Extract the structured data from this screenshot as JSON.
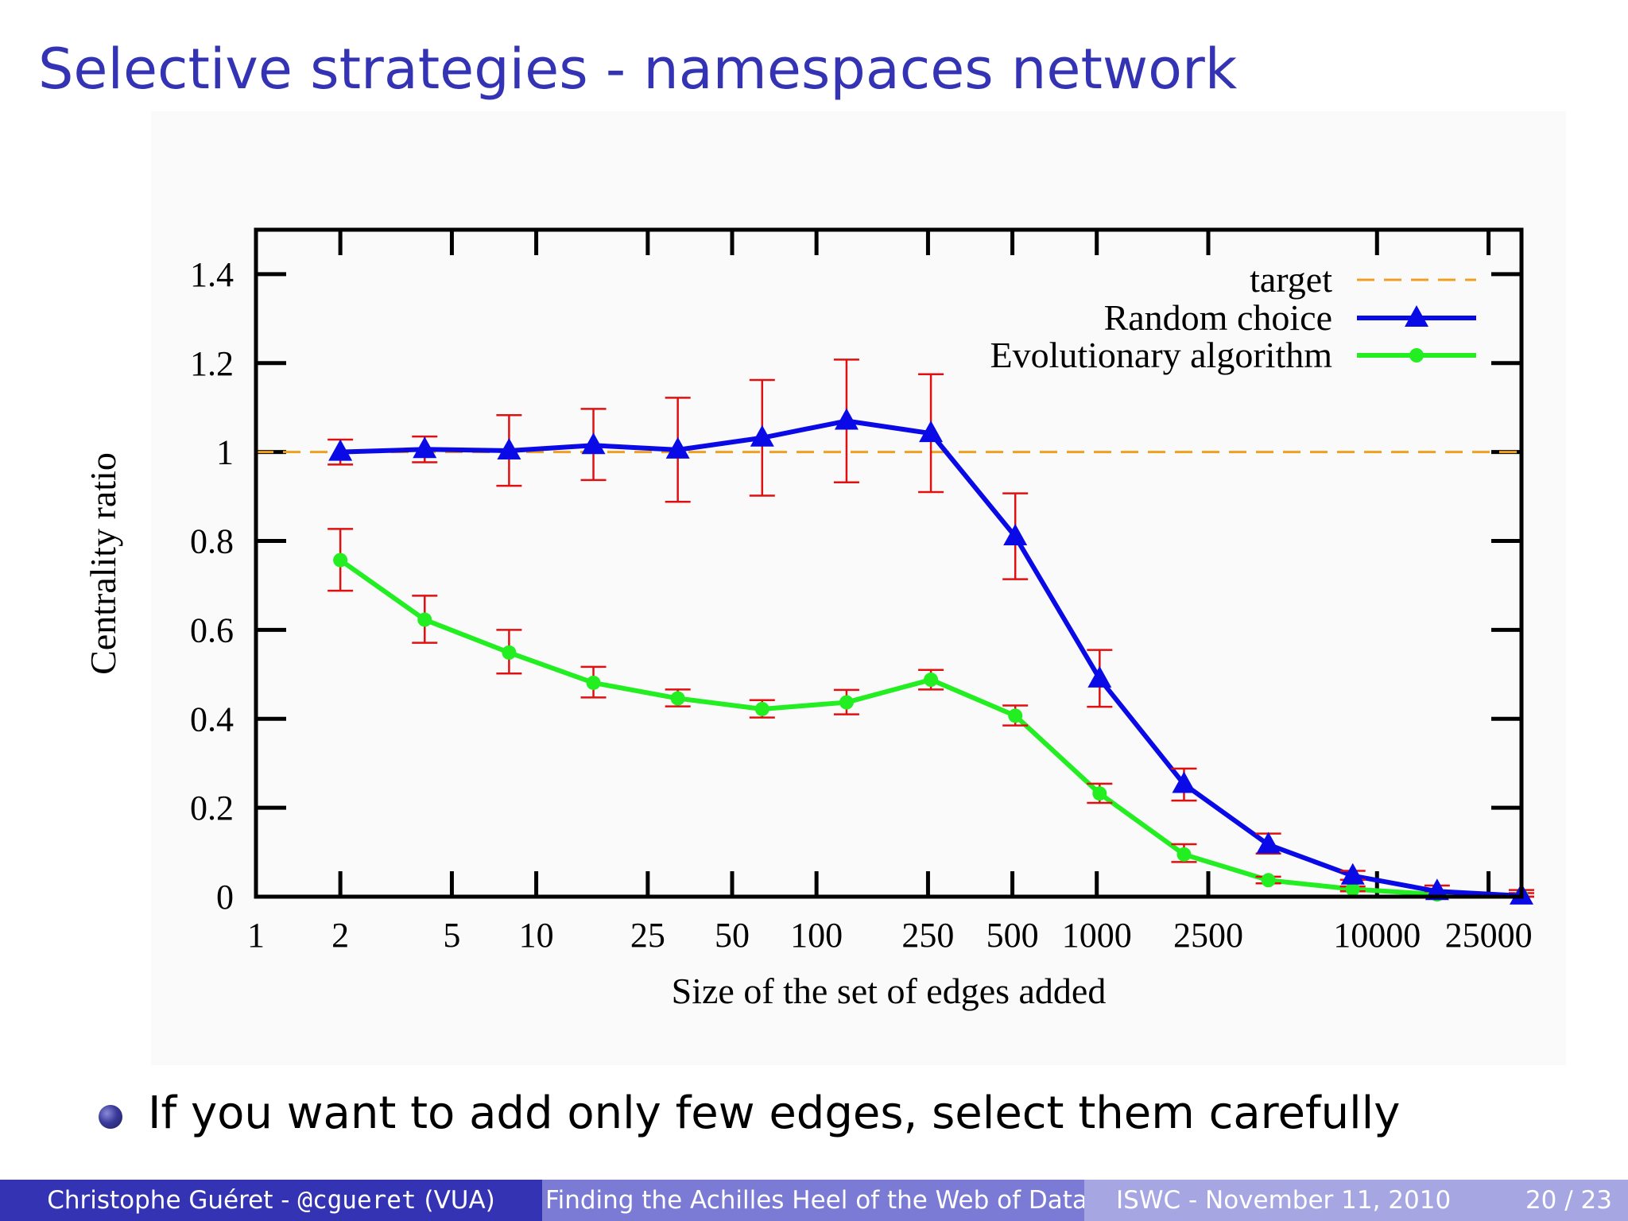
{
  "slide": {
    "title": "Selective strategies - namespaces network",
    "bullet": "If you want to add only few edges, select them carefully"
  },
  "footer": {
    "author": "Christophe Guéret - ",
    "handle": "@cgueret",
    "affiliation": " (VUA)",
    "talk_title": "Finding the Achilles Heel of the Web of Data",
    "event": "ISWC - November 11, 2010",
    "page": "20 / 23"
  },
  "colors": {
    "title": "#3333b3",
    "target": "#f0a020",
    "random": "#0a0ae6",
    "evolutionary": "#22ee22",
    "error_bars": "#e01010"
  },
  "chart_data": {
    "type": "line",
    "xlabel": "Size of the set of edges added",
    "ylabel": "Centrality ratio",
    "x_tick_labels": [
      "1",
      "2",
      "5",
      "10",
      "25",
      "50",
      "100",
      "250",
      "500",
      "1000",
      "2500",
      "10000",
      "25000"
    ],
    "x_ticks": [
      1,
      2,
      5,
      10,
      25,
      50,
      100,
      250,
      500,
      1000,
      2500,
      10000,
      25000
    ],
    "y_ticks": [
      0,
      0.2,
      0.4,
      0.6,
      0.8,
      1,
      1.2,
      1.4
    ],
    "y_tick_labels": [
      "0",
      "0.2",
      "0.4",
      "0.6",
      "0.8",
      "1",
      "1.2",
      "1.4"
    ],
    "ylim": [
      0,
      1.5
    ],
    "xlim": [
      1,
      32768
    ],
    "xscale": "log",
    "legend_position": "top-right",
    "x": [
      2,
      4,
      8,
      16,
      32,
      64,
      128,
      256,
      512,
      1024,
      2048,
      4096,
      8192,
      16384,
      32768
    ],
    "series": [
      {
        "name": "target",
        "style": "dashed",
        "constant": 1.0
      },
      {
        "name": "Random choice",
        "marker": "triangle",
        "values": [
          1.0,
          1.006,
          1.003,
          1.015,
          1.005,
          1.032,
          1.07,
          1.042,
          0.81,
          0.49,
          0.253,
          0.117,
          0.047,
          0.012,
          0.002
        ],
        "err_low": [
          0.972,
          0.977,
          0.924,
          0.937,
          0.888,
          0.902,
          0.932,
          0.91,
          0.714,
          0.427,
          0.216,
          0.097,
          0.038,
          0.0,
          0.0
        ],
        "err_high": [
          1.028,
          1.035,
          1.083,
          1.097,
          1.122,
          1.162,
          1.208,
          1.175,
          0.907,
          0.555,
          0.288,
          0.142,
          0.058,
          0.025,
          0.015
        ]
      },
      {
        "name": "Evolutionary algorithm",
        "marker": "circle",
        "values": [
          0.757,
          0.623,
          0.549,
          0.481,
          0.446,
          0.422,
          0.437,
          0.488,
          0.407,
          0.232,
          0.095,
          0.037,
          0.017,
          0.005,
          0.001
        ],
        "err_low": [
          0.688,
          0.571,
          0.502,
          0.448,
          0.428,
          0.403,
          0.41,
          0.466,
          0.385,
          0.211,
          0.078,
          0.03,
          0.012,
          0.0,
          0.0
        ],
        "err_high": [
          0.827,
          0.677,
          0.6,
          0.517,
          0.466,
          0.442,
          0.465,
          0.51,
          0.43,
          0.254,
          0.118,
          0.045,
          0.023,
          0.012,
          0.008
        ]
      }
    ]
  }
}
